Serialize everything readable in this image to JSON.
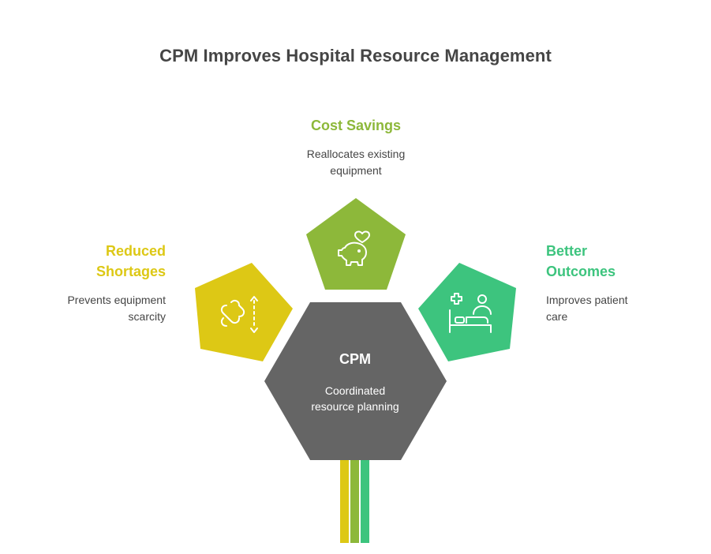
{
  "title": "CPM Improves Hospital Resource Management",
  "center": {
    "label": "CPM",
    "description_line1": "Coordinated",
    "description_line2": "resource planning",
    "color": "#656565"
  },
  "nodes": [
    {
      "id": "cost-savings",
      "heading": "Cost Savings",
      "desc_line1": "Reallocates existing",
      "desc_line2": "equipment",
      "color": "#8DB83A",
      "icon": "piggy-bank-heart-icon"
    },
    {
      "id": "reduced-shortages",
      "heading_line1": "Reduced",
      "heading_line2": "Shortages",
      "desc_line1": "Prevents equipment",
      "desc_line2": "scarcity",
      "color": "#DDC815",
      "icon": "workflow-arrows-icon"
    },
    {
      "id": "better-outcomes",
      "heading_line1": "Better",
      "heading_line2": "Outcomes",
      "desc_line1": "Improves patient",
      "desc_line2": "care",
      "color": "#3DC47E",
      "icon": "patient-bed-icon"
    }
  ]
}
